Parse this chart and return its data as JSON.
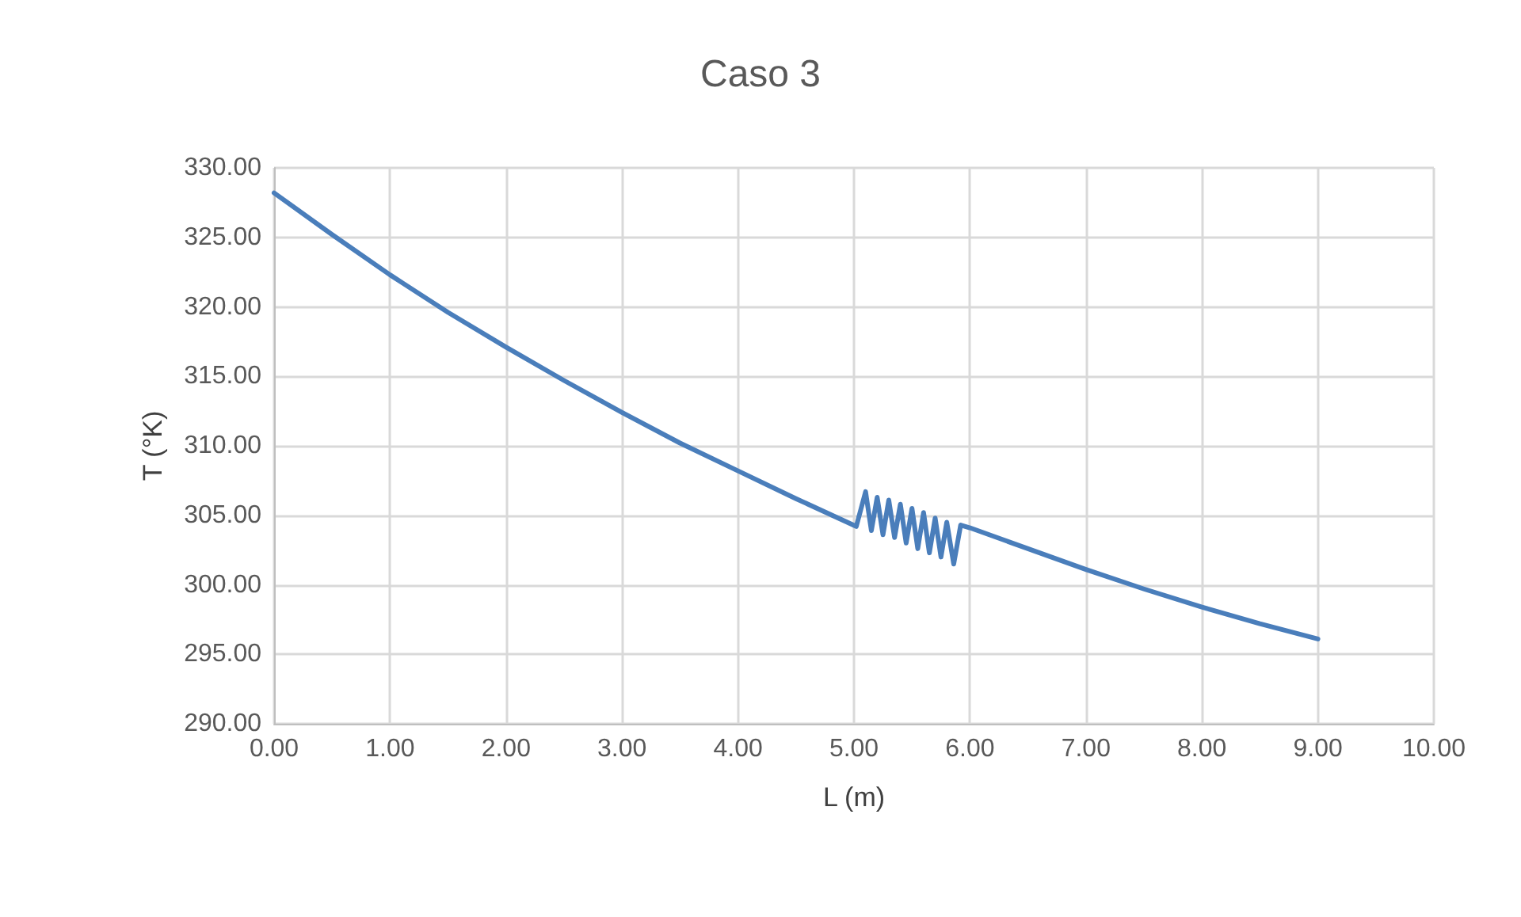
{
  "chart_data": {
    "type": "line",
    "title": "Caso 3",
    "xlabel": "L (m)",
    "ylabel": "T (°K)",
    "series": [
      {
        "color": "#4a7ebb",
        "x": [
          0,
          0.5,
          1,
          1.5,
          2,
          2.5,
          3,
          3.5,
          4,
          4.5,
          5.02,
          5.1,
          5.15,
          5.2,
          5.25,
          5.3,
          5.35,
          5.4,
          5.45,
          5.5,
          5.55,
          5.6,
          5.65,
          5.7,
          5.75,
          5.8,
          5.86,
          5.92,
          6,
          6.5,
          7,
          7.5,
          8,
          8.5,
          9
        ],
        "values": [
          328.2,
          325.2,
          322.3,
          319.6,
          317.1,
          314.7,
          312.4,
          310.2,
          308.2,
          306.2,
          304.2,
          306.7,
          303.9,
          306.3,
          303.6,
          306.1,
          303.4,
          305.8,
          303.0,
          305.5,
          302.6,
          305.2,
          302.3,
          304.8,
          302.0,
          304.5,
          301.5,
          304.3,
          304.1,
          302.6,
          301.1,
          299.7,
          298.4,
          297.2,
          296.1
        ]
      }
    ],
    "xlim": [
      0,
      10
    ],
    "ylim": [
      290,
      330
    ],
    "xticks": [
      {
        "value": 0,
        "label": "0.00"
      },
      {
        "value": 1,
        "label": "1.00"
      },
      {
        "value": 2,
        "label": "2.00"
      },
      {
        "value": 3,
        "label": "3.00"
      },
      {
        "value": 4,
        "label": "4.00"
      },
      {
        "value": 5,
        "label": "5.00"
      },
      {
        "value": 6,
        "label": "6.00"
      },
      {
        "value": 7,
        "label": "7.00"
      },
      {
        "value": 8,
        "label": "8.00"
      },
      {
        "value": 9,
        "label": "9.00"
      },
      {
        "value": 10,
        "label": "10.00"
      }
    ],
    "yticks": [
      {
        "value": 290,
        "label": "290.00"
      },
      {
        "value": 295,
        "label": "295.00"
      },
      {
        "value": 300,
        "label": "300.00"
      },
      {
        "value": 305,
        "label": "305.00"
      },
      {
        "value": 310,
        "label": "310.00"
      },
      {
        "value": 315,
        "label": "315.00"
      },
      {
        "value": 320,
        "label": "320.00"
      },
      {
        "value": 325,
        "label": "325.00"
      },
      {
        "value": 330,
        "label": "330.00"
      }
    ],
    "grid": true,
    "marker": "none",
    "line_style": "solid"
  }
}
